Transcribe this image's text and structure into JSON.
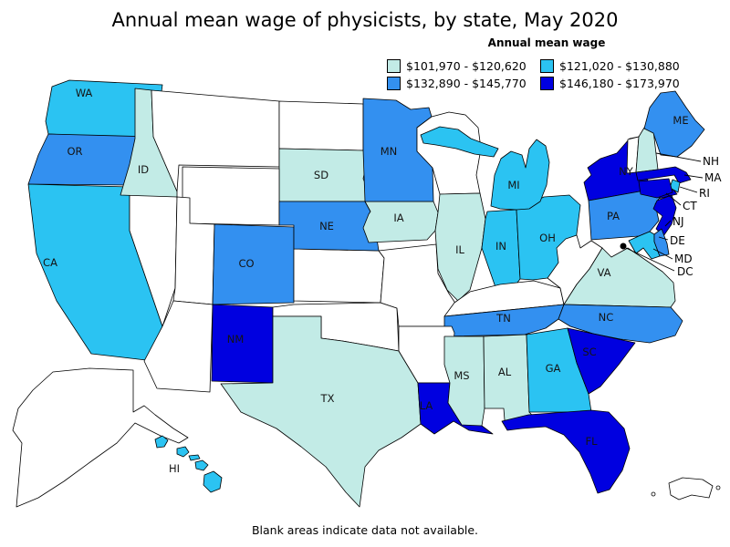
{
  "title": "Annual mean wage of physicists, by state, May 2020",
  "legend": {
    "title": "Annual mean wage",
    "classes": [
      {
        "label": "$101,970 - $120,620",
        "color": "#c2ebe6"
      },
      {
        "label": "$121,020 - $130,880",
        "color": "#2bc3f2"
      },
      {
        "label": "$132,890 - $145,770",
        "color": "#3390f0"
      },
      {
        "label": "$146,180 - $173,970",
        "color": "#0000e0"
      }
    ]
  },
  "footnote": "Blank areas indicate data not available.",
  "map": {
    "no_data_color": "#ffffff",
    "border_color": "#000000",
    "state_classes": {
      "WA": 1,
      "OR": 2,
      "CA": 1,
      "NV": null,
      "ID": 0,
      "MT": null,
      "ND": null,
      "SD": 0,
      "WY": null,
      "UT": null,
      "CO": 2,
      "AZ": null,
      "NM": 3,
      "KS": null,
      "NE": 2,
      "OK": null,
      "TX": 0,
      "MO": null,
      "IA": 0,
      "MN": 2,
      "WI": null,
      "IL": 0,
      "IN": 1,
      "OH": 1,
      "KY": null,
      "TN": 2,
      "AR": null,
      "LA": 3,
      "MS": 0,
      "AL": 0,
      "GA": 1,
      "FL": 3,
      "MI": 1,
      "WV": null,
      "VA": 0,
      "NC": 2,
      "SC": 3,
      "NY": 3,
      "PA": 2,
      "VT": null,
      "NH": 0,
      "ME": 2,
      "MA": 3,
      "RI": 1,
      "CT": 3,
      "NJ": 3,
      "DE": 2,
      "MD": 1,
      "AK": null,
      "HI": 1,
      "PR": null
    },
    "state_labels": [
      "WA",
      "OR",
      "ID",
      "CA",
      "SD",
      "NE",
      "MN",
      "IA",
      "CO",
      "NM",
      "TX",
      "IL",
      "IN",
      "OH",
      "MI",
      "TN",
      "NC",
      "SC",
      "GA",
      "AL",
      "MS",
      "FL",
      "LA",
      "VA",
      "PA",
      "NY",
      "ME",
      "HI"
    ],
    "callouts": [
      "NH",
      "MA",
      "RI",
      "CT",
      "NJ",
      "DE",
      "MD",
      "DC"
    ]
  },
  "chart_data": {
    "type": "choropleth",
    "title": "Annual mean wage of physicists, by state, May 2020",
    "legend_title": "Annual mean wage",
    "bins": [
      "$101,970 - $120,620",
      "$121,020 - $130,880",
      "$132,890 - $145,770",
      "$146,180 - $173,970"
    ],
    "states_by_bin": {
      "$101,970 - $120,620": [
        "ID",
        "SD",
        "IA",
        "IL",
        "TX",
        "MS",
        "AL",
        "NH",
        "VA"
      ],
      "$121,020 - $130,880": [
        "WA",
        "CA",
        "HI",
        "MI",
        "IN",
        "OH",
        "GA",
        "RI",
        "MD"
      ],
      "$132,890 - $145,770": [
        "OR",
        "MN",
        "NE",
        "CO",
        "PA",
        "ME",
        "TN",
        "NC",
        "DE"
      ],
      "$146,180 - $173,970": [
        "NM",
        "LA",
        "FL",
        "SC",
        "NY",
        "NJ",
        "CT",
        "MA"
      ]
    },
    "no_data": [
      "MT",
      "ND",
      "WY",
      "NV",
      "UT",
      "AZ",
      "KS",
      "OK",
      "MO",
      "AR",
      "WI",
      "KY",
      "WV",
      "VT",
      "AK",
      "PR"
    ],
    "note": "Blank areas indicate data not available."
  }
}
